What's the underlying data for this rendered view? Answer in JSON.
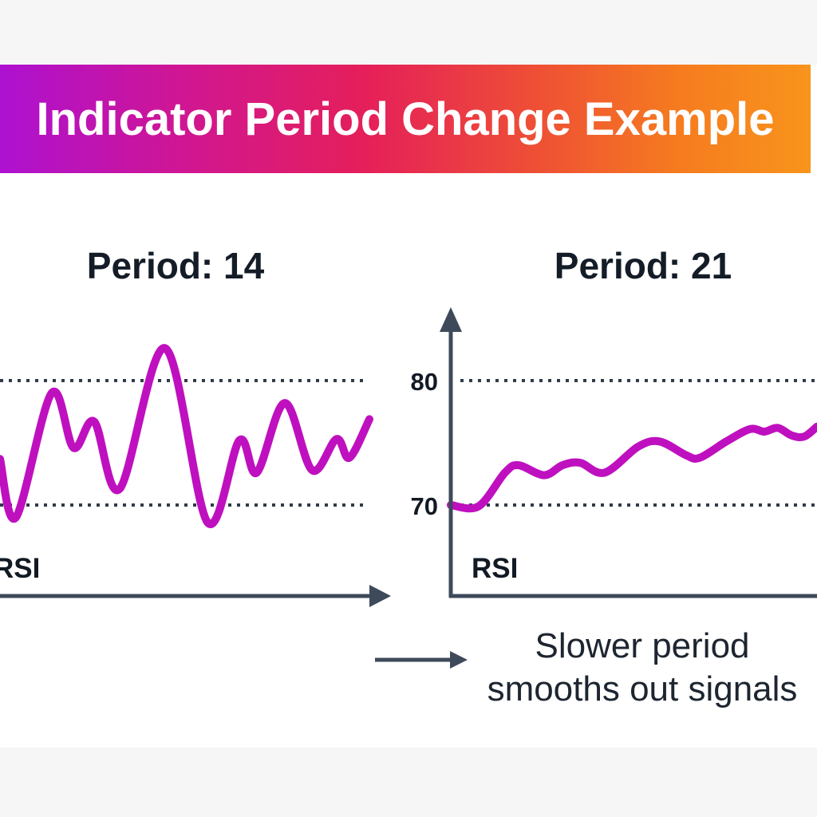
{
  "banner": {
    "title": "Indicator Period Change Example"
  },
  "annotation": {
    "line1": "Slower period",
    "line2": "smooths out signals"
  },
  "colors": {
    "banner_gradient_start": "#ad11d1",
    "banner_gradient_mid": "#e51f5a",
    "banner_gradient_end": "#f8941c",
    "banner_text": "#ffffff",
    "curve": "#bf10bf",
    "axis": "#3e4a5a",
    "dotted_line": "#2f3b49",
    "heading_text": "#141c27",
    "background": "#ffffff",
    "margin_strip": "#f6f6f7"
  },
  "chart_data": {
    "type": "line",
    "layout": "two charts side by side, left chart cropped at left image edge",
    "charts": [
      {
        "type": "line",
        "title": "Period: 14",
        "rsi_label": "RSI",
        "y_axis_visible": false,
        "levels": [
          {
            "label": "80",
            "value": 80
          },
          {
            "label": "70",
            "value": 70
          }
        ],
        "ylim": [
          66,
          85
        ],
        "points": {
          "t": [
            0,
            0.043,
            0.14,
            0.199,
            0.255,
            0.324,
            0.447,
            0.562,
            0.648,
            0.695,
            0.771,
            0.845,
            0.911,
            0.946,
            1.0
          ],
          "v": [
            73.7,
            69.0,
            79.0,
            74.6,
            76.7,
            71.3,
            82.6,
            68.6,
            75.2,
            72.6,
            78.2,
            72.8,
            75.3,
            73.8,
            76.9
          ]
        }
      },
      {
        "type": "line",
        "title": "Period: 21",
        "rsi_label": "RSI",
        "y_axis_visible": true,
        "levels": [
          {
            "label": "80",
            "value": 80
          },
          {
            "label": "70",
            "value": 70
          }
        ],
        "ylim": [
          66,
          85
        ],
        "points": {
          "t": [
            0,
            0.076,
            0.148,
            0.185,
            0.255,
            0.305,
            0.353,
            0.42,
            0.512,
            0.571,
            0.643,
            0.68,
            0.752,
            0.817,
            0.856,
            0.893,
            0.93,
            0.965,
            1.0
          ],
          "v": [
            70.0,
            69.9,
            72.6,
            73.2,
            72.4,
            73.2,
            73.4,
            72.6,
            74.7,
            75.1,
            74.0,
            73.8,
            75.1,
            76.1,
            75.9,
            76.2,
            75.6,
            75.5,
            76.3
          ]
        }
      }
    ]
  }
}
